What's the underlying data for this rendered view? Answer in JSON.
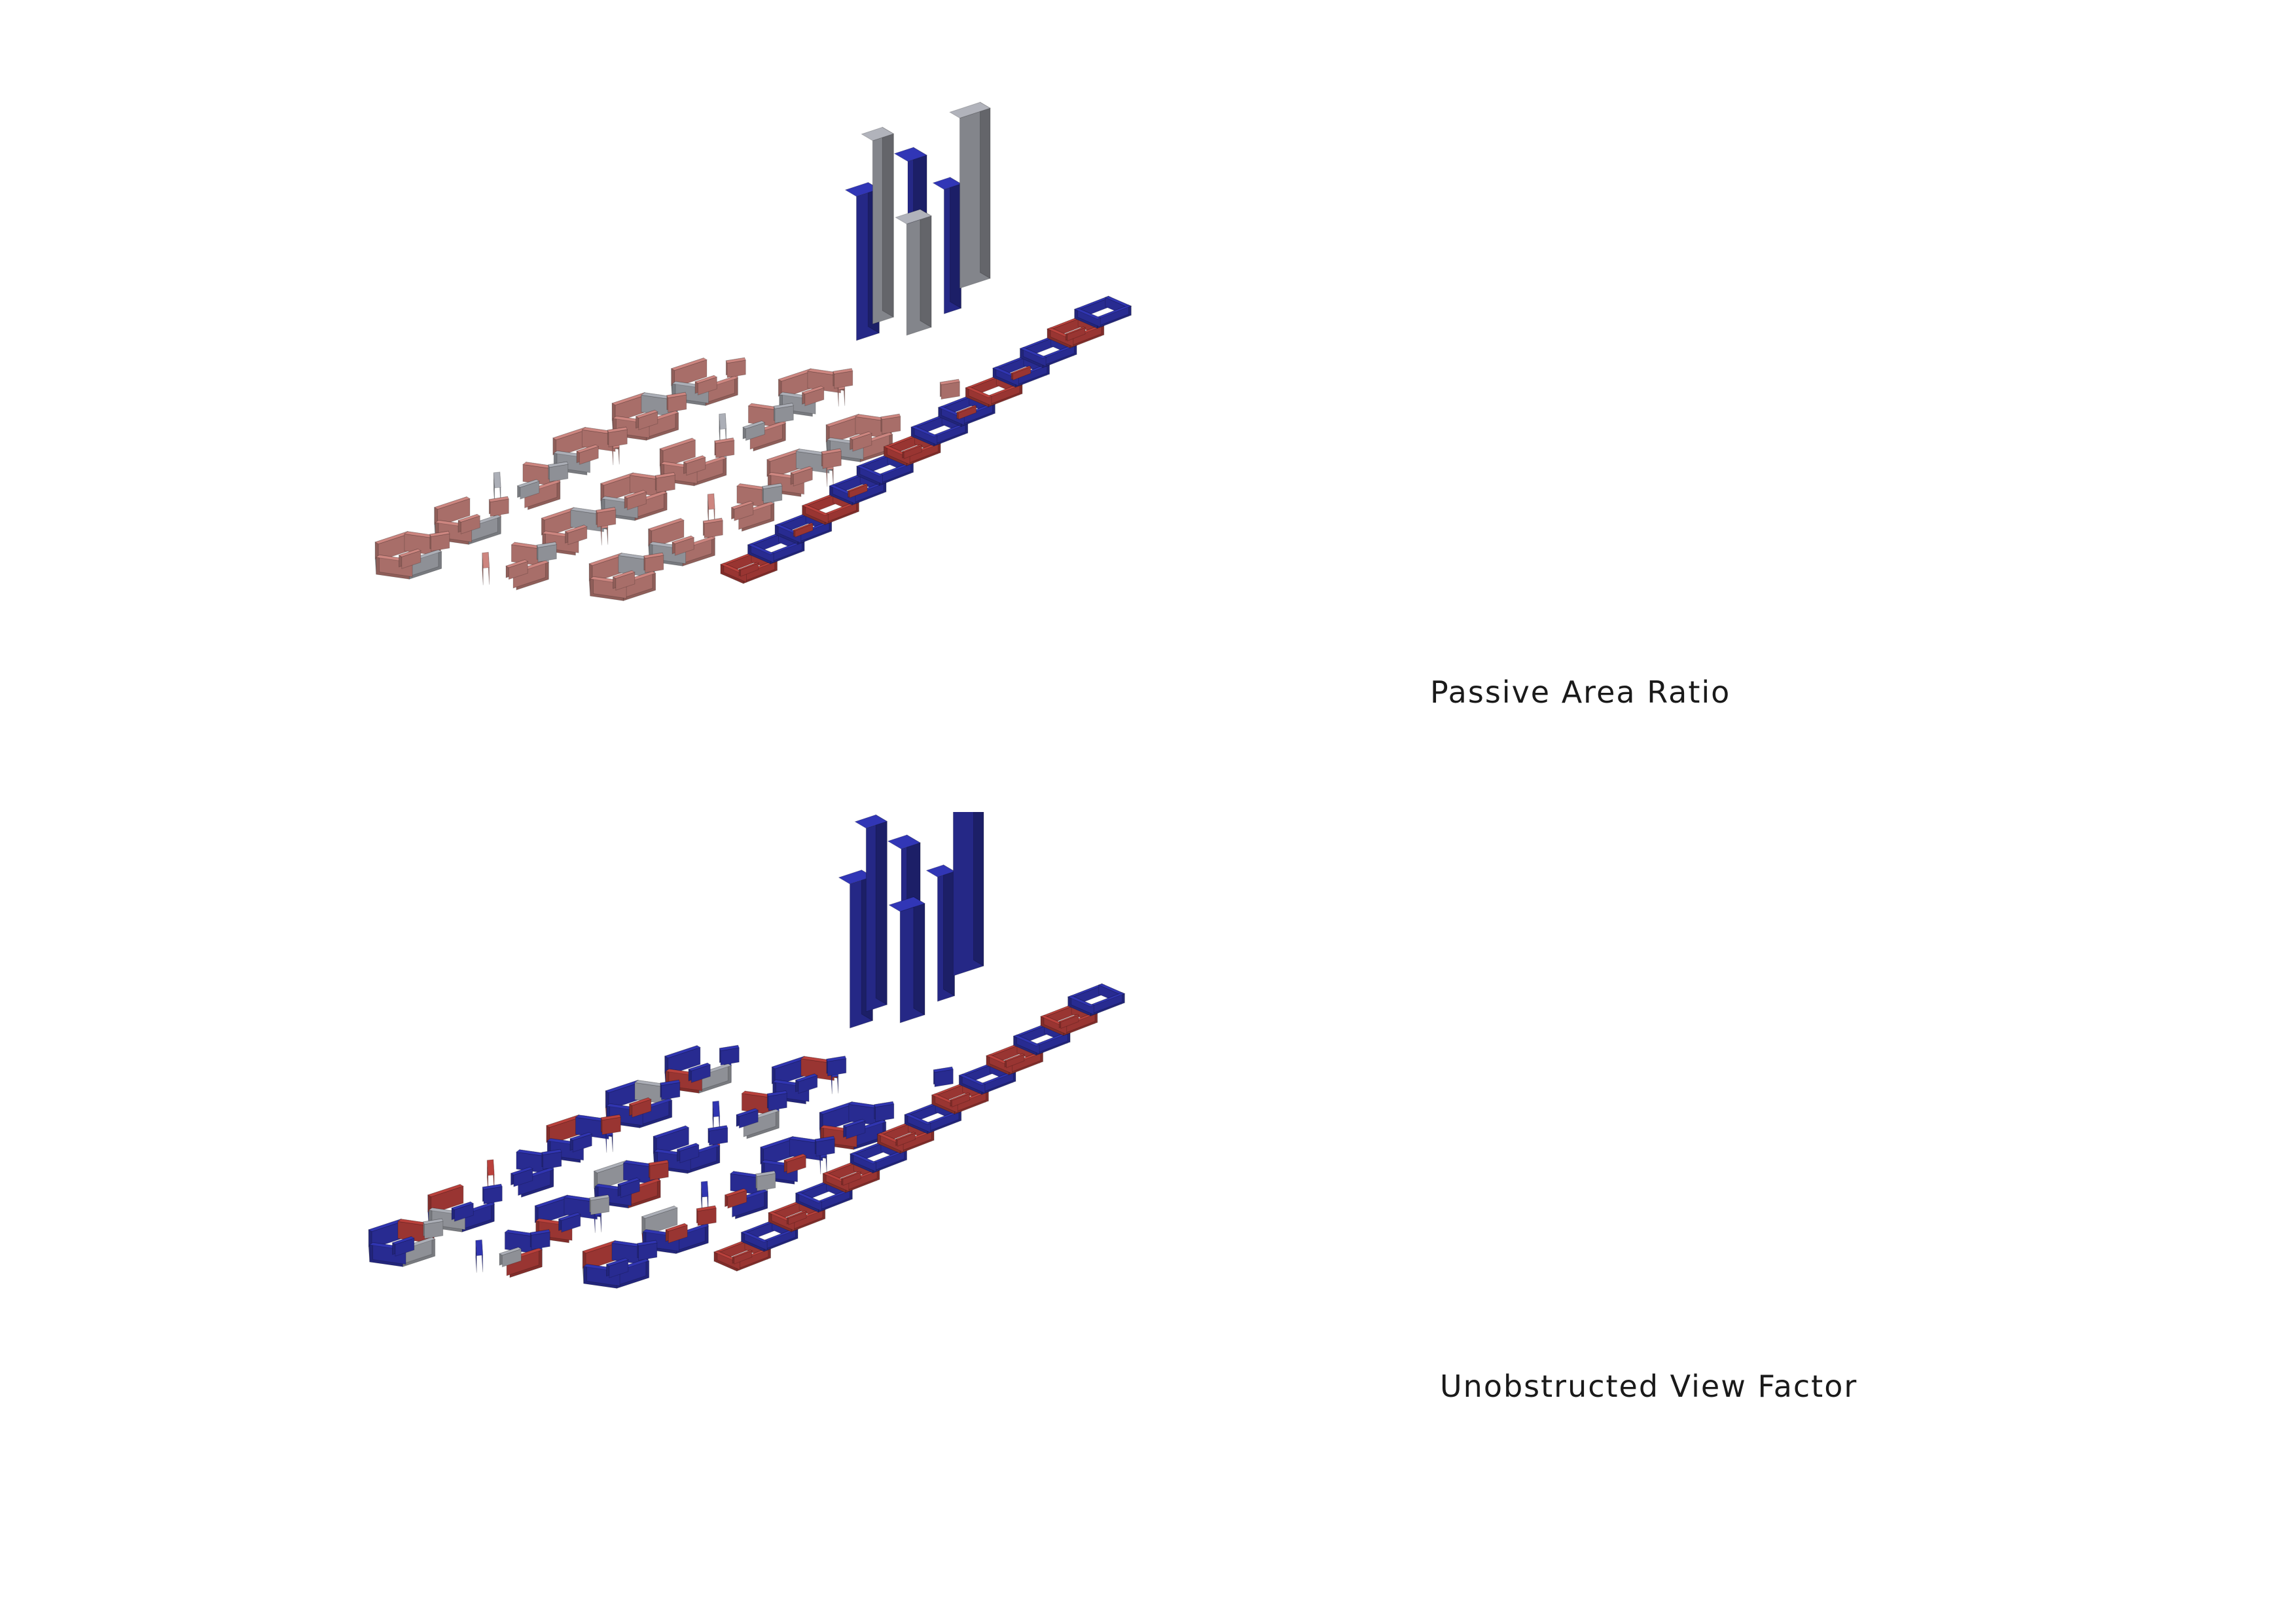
{
  "panels": [
    {
      "id": "passive-area-ratio",
      "label": "Passive Area Ratio"
    },
    {
      "id": "unobstructed-view-factor",
      "label": "Unobstructed View Factor"
    }
  ],
  "colors": {
    "blue": "#2b2f9e",
    "blue_dark": "#1c1f6e",
    "red": "#a63a36",
    "red_dark": "#7a2522",
    "rose": "#b77872",
    "rose_dark": "#8a5450",
    "grey": "#9a9ca3",
    "grey_dark": "#6d6f76",
    "white": "#ffffff"
  }
}
